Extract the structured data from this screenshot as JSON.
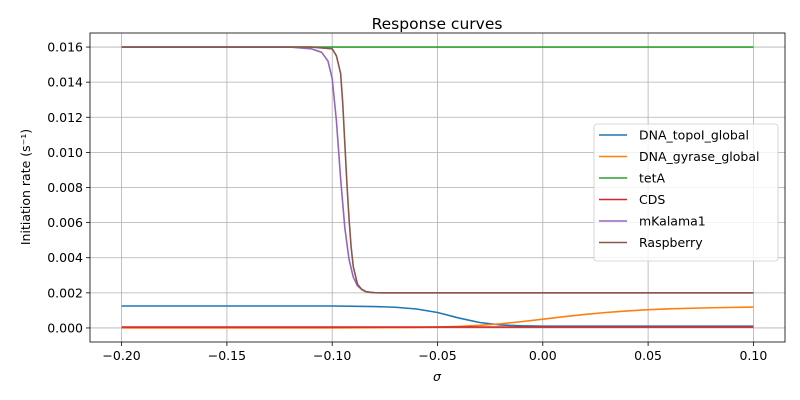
{
  "chart_data": {
    "type": "line",
    "title": "Response curves",
    "xlabel": "σ",
    "ylabel": "Initiation rate (s⁻¹)",
    "xlim": [
      -0.215,
      0.115
    ],
    "ylim": [
      -0.0008,
      0.0168
    ],
    "xticks": [
      -0.2,
      -0.15,
      -0.1,
      -0.05,
      0.0,
      0.05,
      0.1
    ],
    "xtick_labels": [
      "−0.20",
      "−0.15",
      "−0.10",
      "−0.05",
      "0.00",
      "0.05",
      "0.10"
    ],
    "yticks": [
      0.0,
      0.002,
      0.004,
      0.006,
      0.008,
      0.01,
      0.012,
      0.014,
      0.016
    ],
    "ytick_labels": [
      "0.000",
      "0.002",
      "0.004",
      "0.006",
      "0.008",
      "0.010",
      "0.012",
      "0.014",
      "0.016"
    ],
    "grid": true,
    "legend_position": "center-right",
    "series": [
      {
        "name": "DNA_topoI_global",
        "color": "#1f77b4",
        "x": [
          -0.2,
          -0.1,
          -0.08,
          -0.07,
          -0.06,
          -0.05,
          -0.04,
          -0.03,
          -0.02,
          -0.01,
          0.0,
          0.05,
          0.1
        ],
        "y": [
          0.00125,
          0.00125,
          0.00122,
          0.00118,
          0.00108,
          0.00088,
          0.00057,
          0.00031,
          0.00017,
          0.00012,
          0.0001,
          0.0001,
          0.0001
        ]
      },
      {
        "name": "DNA_gyrase_global",
        "color": "#ff7f0e",
        "x": [
          -0.2,
          -0.1,
          -0.06,
          -0.05,
          -0.04,
          -0.03,
          -0.02,
          -0.01,
          0.0,
          0.01,
          0.02,
          0.03,
          0.04,
          0.05,
          0.06,
          0.08,
          0.1
        ],
        "y": [
          0.0,
          0.0,
          3e-05,
          5e-05,
          9e-05,
          0.00015,
          0.00024,
          0.00036,
          0.0005,
          0.00064,
          0.00077,
          0.00088,
          0.00097,
          0.00104,
          0.00109,
          0.00115,
          0.00119
        ]
      },
      {
        "name": "tetA",
        "color": "#2ca02c",
        "x": [
          -0.2,
          0.1
        ],
        "y": [
          0.016,
          0.016
        ]
      },
      {
        "name": "CDS",
        "color": "#d62728",
        "x": [
          -0.2,
          0.1
        ],
        "y": [
          5e-05,
          5e-05
        ]
      },
      {
        "name": "mKalama1",
        "color": "#9467bd",
        "x": [
          -0.2,
          -0.12,
          -0.11,
          -0.105,
          -0.102,
          -0.1,
          -0.098,
          -0.096,
          -0.094,
          -0.092,
          -0.09,
          -0.088,
          -0.086,
          -0.084,
          -0.082,
          -0.08,
          -0.075,
          0.1
        ],
        "y": [
          0.016,
          0.016,
          0.0159,
          0.0157,
          0.0152,
          0.0142,
          0.0118,
          0.0085,
          0.0057,
          0.0039,
          0.0029,
          0.0024,
          0.0022,
          0.00207,
          0.00203,
          0.00201,
          0.002,
          0.002
        ]
      },
      {
        "name": "Raspberry",
        "color": "#8c564b",
        "x": [
          -0.2,
          -0.11,
          -0.1,
          -0.098,
          -0.096,
          -0.095,
          -0.094,
          -0.093,
          -0.092,
          -0.091,
          -0.09,
          -0.088,
          -0.086,
          -0.084,
          -0.082,
          -0.08,
          -0.075,
          0.1
        ],
        "y": [
          0.016,
          0.016,
          0.0159,
          0.0155,
          0.0145,
          0.0128,
          0.0105,
          0.0082,
          0.0062,
          0.0046,
          0.0035,
          0.0025,
          0.00219,
          0.00207,
          0.00203,
          0.00201,
          0.002,
          0.002
        ]
      }
    ]
  }
}
